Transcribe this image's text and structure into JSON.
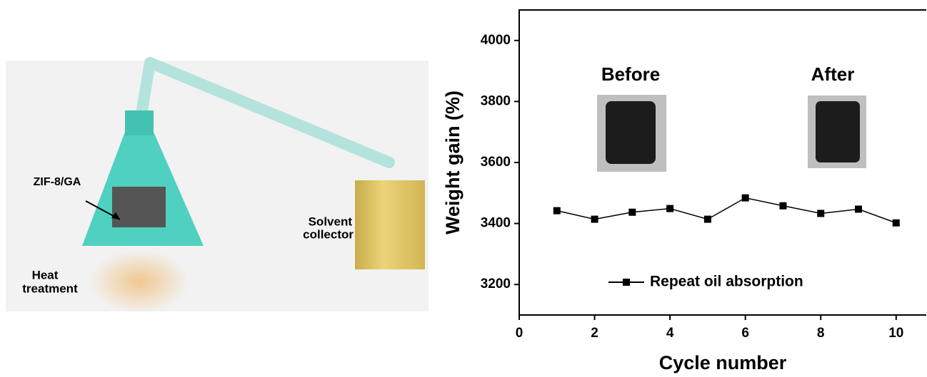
{
  "diagram": {
    "sample_label": "ZIF-8/GA",
    "collector_label": [
      "Solvent",
      "collector"
    ],
    "heat_label": [
      "Heat",
      "treatment"
    ]
  },
  "chart_data": {
    "type": "line",
    "x": [
      1,
      2,
      3,
      4,
      5,
      6,
      7,
      8,
      9,
      10
    ],
    "series": [
      {
        "name": "Repeat oil absorption",
        "color": "#000000",
        "values": [
          3442,
          3414,
          3437,
          3449,
          3414,
          3484,
          3458,
          3433,
          3447,
          3402
        ]
      }
    ],
    "xlim": [
      0,
      10.8
    ],
    "xticks": [
      0,
      2,
      4,
      6,
      8,
      10
    ],
    "ylim": [
      3100,
      4100
    ],
    "yticks": [
      3200,
      3400,
      3600,
      3800,
      4000
    ],
    "xlabel": "Cycle number",
    "ylabel": "Weight gain (%)",
    "annotations": [
      "Before",
      "After"
    ],
    "legend": "lower center",
    "grid": false
  }
}
